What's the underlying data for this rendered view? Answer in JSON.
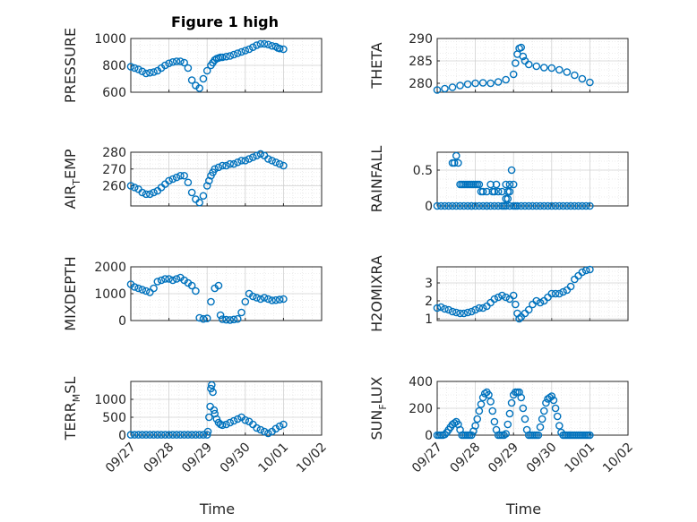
{
  "figure": {
    "title": "Figure 1 high",
    "marker_color": "#0072bd"
  },
  "chart_data": [
    {
      "type": "scatter",
      "title": "Figure 1 high",
      "ylabel": "PRESSURE",
      "xlabel": "",
      "ylim": [
        600,
        1000
      ],
      "yticks": [
        600,
        800,
        1000
      ],
      "x": [
        0.0,
        0.1,
        0.2,
        0.3,
        0.4,
        0.5,
        0.6,
        0.7,
        0.8,
        0.9,
        1.0,
        1.1,
        1.2,
        1.3,
        1.4,
        1.5,
        1.6,
        1.7,
        1.8,
        1.9,
        2.0,
        2.1,
        2.15,
        2.2,
        2.25,
        2.3,
        2.35,
        2.4,
        2.5,
        2.6,
        2.7,
        2.8,
        2.9,
        3.0,
        3.1,
        3.2,
        3.3,
        3.4,
        3.5,
        3.6,
        3.7,
        3.8,
        3.85,
        3.9,
        4.0
      ],
      "y": [
        790,
        780,
        770,
        755,
        740,
        745,
        750,
        760,
        780,
        800,
        815,
        825,
        830,
        830,
        820,
        780,
        690,
        650,
        630,
        700,
        760,
        800,
        820,
        840,
        850,
        855,
        860,
        860,
        865,
        870,
        880,
        890,
        900,
        910,
        920,
        935,
        950,
        960,
        960,
        955,
        945,
        940,
        930,
        925,
        920
      ]
    },
    {
      "type": "scatter",
      "ylabel": "THETA",
      "xlabel": "",
      "ylim": [
        278,
        290
      ],
      "yticks": [
        280,
        285,
        290
      ],
      "x": [
        0.0,
        0.2,
        0.4,
        0.6,
        0.8,
        1.0,
        1.2,
        1.4,
        1.6,
        1.8,
        2.0,
        2.05,
        2.1,
        2.15,
        2.2,
        2.25,
        2.3,
        2.4,
        2.6,
        2.8,
        3.0,
        3.2,
        3.4,
        3.6,
        3.8,
        4.0
      ],
      "y": [
        278.5,
        278.8,
        279.1,
        279.5,
        279.8,
        280.0,
        280.1,
        280.0,
        280.3,
        280.8,
        282.0,
        284.5,
        286.5,
        287.8,
        288.0,
        286.0,
        285.0,
        284.2,
        283.8,
        283.5,
        283.4,
        283.0,
        282.5,
        281.8,
        281.0,
        280.2
      ]
    },
    {
      "type": "scatter",
      "ylabel": "AIR_TEMP",
      "xlabel": "",
      "ylim": [
        248,
        280
      ],
      "yticks": [
        260,
        270,
        280
      ],
      "x": [
        0.0,
        0.1,
        0.2,
        0.3,
        0.4,
        0.5,
        0.6,
        0.7,
        0.8,
        0.9,
        1.0,
        1.1,
        1.2,
        1.3,
        1.4,
        1.5,
        1.6,
        1.7,
        1.8,
        1.9,
        2.0,
        2.05,
        2.1,
        2.15,
        2.2,
        2.3,
        2.4,
        2.5,
        2.6,
        2.7,
        2.8,
        2.9,
        3.0,
        3.1,
        3.2,
        3.3,
        3.4,
        3.5,
        3.6,
        3.7,
        3.8,
        3.9,
        4.0
      ],
      "y": [
        260,
        259,
        258,
        256,
        255,
        255,
        256,
        257,
        259,
        261,
        263,
        264,
        265,
        266,
        266,
        262,
        256,
        252,
        250,
        254,
        260,
        263,
        266,
        268,
        270,
        271,
        272,
        272,
        273,
        273,
        274,
        275,
        275,
        276,
        277,
        278,
        279,
        278,
        276,
        275,
        274,
        273,
        272
      ]
    },
    {
      "type": "scatter",
      "ylabel": "RAINFALL",
      "xlabel": "",
      "ylim": [
        0,
        0.75
      ],
      "yticks": [
        0,
        0.5
      ],
      "x": [
        0.0,
        0.1,
        0.2,
        0.3,
        0.4,
        0.5,
        0.6,
        0.7,
        0.8,
        0.9,
        1.0,
        1.1,
        1.2,
        1.3,
        1.4,
        1.5,
        1.6,
        1.7,
        1.8,
        1.9,
        2.0,
        2.05,
        2.1,
        2.2,
        2.3,
        2.4,
        2.5,
        2.6,
        2.7,
        2.8,
        2.9,
        3.0,
        3.1,
        3.2,
        3.3,
        3.4,
        3.5,
        3.6,
        3.7,
        3.8,
        3.9,
        4.0,
        0.4,
        0.45,
        0.5,
        0.55,
        0.6,
        0.65,
        0.7,
        0.75,
        0.8,
        0.85,
        0.9,
        0.95,
        1.0,
        1.05,
        1.1,
        1.15,
        1.2,
        1.3,
        1.4,
        1.45,
        1.5,
        1.55,
        1.6,
        1.7,
        1.8,
        1.85,
        1.9,
        1.95,
        2.0,
        0.9,
        1.3,
        1.75,
        1.8,
        1.85,
        1.9
      ],
      "y": [
        0,
        0,
        0,
        0,
        0,
        0,
        0,
        0,
        0,
        0,
        0,
        0,
        0,
        0,
        0,
        0,
        0,
        0,
        0,
        0,
        0,
        0,
        0,
        0,
        0,
        0,
        0,
        0,
        0,
        0,
        0,
        0,
        0,
        0,
        0,
        0,
        0,
        0,
        0,
        0,
        0,
        0,
        0.6,
        0.6,
        0.7,
        0.6,
        0.3,
        0.3,
        0.3,
        0.3,
        0.3,
        0.3,
        0.3,
        0.3,
        0.3,
        0.3,
        0.3,
        0.2,
        0.2,
        0.2,
        0.3,
        0.2,
        0.2,
        0.3,
        0.2,
        0.2,
        0.3,
        0.1,
        0.2,
        0.5,
        0.3,
        0,
        0,
        0,
        0.1,
        0.2,
        0.3
      ]
    },
    {
      "type": "scatter",
      "ylabel": "MIXDEPTH",
      "xlabel": "",
      "ylim": [
        0,
        2000
      ],
      "yticks": [
        0,
        1000,
        2000
      ],
      "x": [
        0.0,
        0.1,
        0.2,
        0.3,
        0.4,
        0.5,
        0.6,
        0.7,
        0.8,
        0.9,
        1.0,
        1.1,
        1.2,
        1.3,
        1.4,
        1.5,
        1.6,
        1.7,
        1.8,
        1.9,
        2.0,
        2.1,
        2.2,
        2.3,
        2.35,
        2.4,
        2.5,
        2.6,
        2.7,
        2.8,
        2.9,
        3.0,
        3.1,
        3.2,
        3.3,
        3.4,
        3.5,
        3.6,
        3.7,
        3.8,
        3.9,
        4.0
      ],
      "y": [
        1350,
        1250,
        1200,
        1150,
        1100,
        1050,
        1200,
        1450,
        1500,
        1550,
        1550,
        1500,
        1550,
        1600,
        1500,
        1400,
        1300,
        1100,
        100,
        60,
        80,
        700,
        1200,
        1300,
        200,
        50,
        30,
        20,
        40,
        60,
        300,
        700,
        1000,
        900,
        850,
        800,
        850,
        800,
        750,
        760,
        780,
        800
      ]
    },
    {
      "type": "scatter",
      "ylabel": "H2OMIXRA",
      "xlabel": "",
      "ylim": [
        0.9,
        3.9
      ],
      "yticks": [
        1,
        2,
        3
      ],
      "x": [
        0.0,
        0.1,
        0.2,
        0.3,
        0.4,
        0.5,
        0.6,
        0.7,
        0.8,
        0.9,
        1.0,
        1.1,
        1.2,
        1.3,
        1.4,
        1.5,
        1.6,
        1.7,
        1.8,
        1.9,
        2.0,
        2.05,
        2.1,
        2.15,
        2.2,
        2.3,
        2.4,
        2.5,
        2.6,
        2.7,
        2.8,
        2.9,
        3.0,
        3.1,
        3.2,
        3.3,
        3.4,
        3.5,
        3.6,
        3.7,
        3.8,
        3.9,
        4.0
      ],
      "y": [
        1.6,
        1.65,
        1.55,
        1.5,
        1.4,
        1.35,
        1.3,
        1.3,
        1.35,
        1.4,
        1.5,
        1.6,
        1.6,
        1.7,
        1.9,
        2.1,
        2.2,
        2.3,
        2.2,
        2.1,
        2.3,
        1.8,
        1.3,
        1.0,
        1.1,
        1.3,
        1.5,
        1.8,
        2.0,
        1.9,
        2.0,
        2.2,
        2.4,
        2.4,
        2.4,
        2.5,
        2.6,
        2.8,
        3.2,
        3.4,
        3.6,
        3.7,
        3.75
      ]
    },
    {
      "type": "scatter",
      "ylabel": "TERR_MSL",
      "xlabel": "Time",
      "ylim": [
        0,
        1500
      ],
      "yticks": [
        0,
        500,
        1000
      ],
      "x": [
        0.0,
        0.1,
        0.2,
        0.3,
        0.4,
        0.5,
        0.6,
        0.7,
        0.8,
        0.9,
        1.0,
        1.1,
        1.2,
        1.3,
        1.4,
        1.5,
        1.6,
        1.7,
        1.8,
        1.9,
        2.0,
        2.02,
        2.05,
        2.08,
        2.1,
        2.12,
        2.15,
        2.18,
        2.2,
        2.25,
        2.3,
        2.35,
        2.4,
        2.5,
        2.6,
        2.7,
        2.8,
        2.9,
        3.0,
        3.1,
        3.2,
        3.3,
        3.4,
        3.5,
        3.6,
        3.7,
        3.8,
        3.9,
        4.0
      ],
      "y": [
        10,
        10,
        10,
        10,
        10,
        10,
        10,
        10,
        10,
        10,
        10,
        10,
        10,
        10,
        10,
        10,
        10,
        10,
        10,
        10,
        10,
        100,
        500,
        800,
        1300,
        1400,
        1200,
        700,
        600,
        450,
        350,
        300,
        280,
        300,
        350,
        400,
        450,
        500,
        420,
        380,
        300,
        200,
        150,
        100,
        50,
        100,
        180,
        250,
        300
      ]
    },
    {
      "type": "scatter",
      "ylabel": "SUN_FLUX",
      "xlabel": "Time",
      "ylim": [
        0,
        400
      ],
      "yticks": [
        0,
        200,
        400
      ],
      "x": [
        0.0,
        0.05,
        0.1,
        0.15,
        0.2,
        0.25,
        0.3,
        0.35,
        0.4,
        0.45,
        0.5,
        0.55,
        0.6,
        0.65,
        0.7,
        0.75,
        0.8,
        0.85,
        0.9,
        0.95,
        1.0,
        1.05,
        1.1,
        1.15,
        1.2,
        1.25,
        1.3,
        1.35,
        1.4,
        1.45,
        1.5,
        1.55,
        1.6,
        1.65,
        1.7,
        1.75,
        1.8,
        1.85,
        1.9,
        1.95,
        2.0,
        2.05,
        2.1,
        2.15,
        2.2,
        2.25,
        2.3,
        2.35,
        2.4,
        2.45,
        2.5,
        2.55,
        2.6,
        2.65,
        2.7,
        2.75,
        2.8,
        2.85,
        2.9,
        2.95,
        3.0,
        3.05,
        3.1,
        3.15,
        3.2,
        3.25,
        3.3,
        3.35,
        3.4,
        3.45,
        3.5,
        3.55,
        3.6,
        3.65,
        3.7,
        3.75,
        3.8,
        3.85,
        3.9,
        3.95,
        4.0
      ],
      "y": [
        0,
        0,
        0,
        0,
        5,
        20,
        40,
        60,
        80,
        90,
        100,
        80,
        40,
        0,
        0,
        0,
        0,
        0,
        0,
        30,
        70,
        120,
        180,
        230,
        280,
        310,
        320,
        300,
        250,
        180,
        100,
        40,
        0,
        0,
        0,
        0,
        10,
        80,
        160,
        240,
        300,
        320,
        320,
        320,
        280,
        200,
        120,
        40,
        0,
        0,
        0,
        0,
        0,
        0,
        60,
        120,
        180,
        240,
        270,
        280,
        290,
        260,
        200,
        140,
        70,
        20,
        0,
        0,
        0,
        0,
        0,
        0,
        0,
        0,
        0,
        0,
        0,
        0,
        0,
        0,
        0
      ]
    }
  ],
  "x_axis": {
    "ticks": [
      "09/27",
      "09/28",
      "09/29",
      "09/30",
      "10/01",
      "10/02"
    ],
    "label": "Time",
    "xlim": [
      0,
      5
    ]
  }
}
